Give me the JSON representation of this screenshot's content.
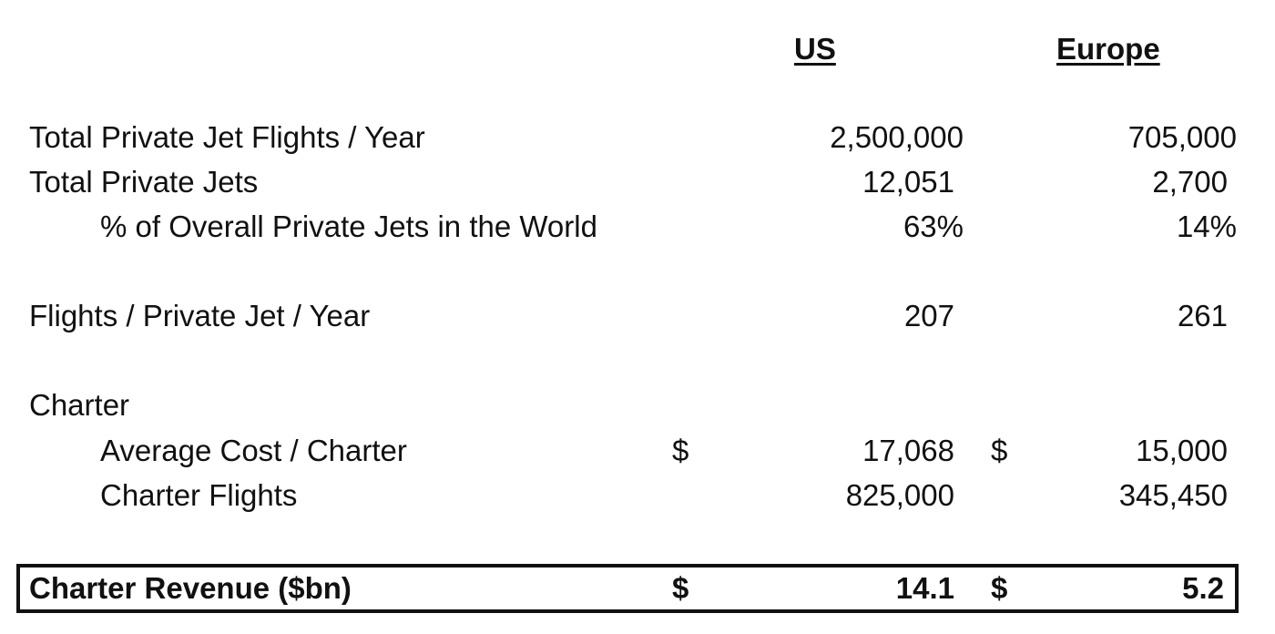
{
  "columns": {
    "us": "US",
    "europe": "Europe"
  },
  "rows": {
    "total_flights": {
      "label": "Total Private Jet Flights / Year",
      "us": "2,500,000",
      "europe": "705,000"
    },
    "total_jets": {
      "label": "Total Private Jets",
      "us": "12,051",
      "europe": "2,700"
    },
    "pct_world": {
      "label": "% of Overall Private Jets in the World",
      "us": "63%",
      "europe": "14%"
    },
    "flights_per_jet": {
      "label": "Flights / Private Jet / Year",
      "us": "207",
      "europe": "261"
    },
    "charter_section": {
      "label": "Charter"
    },
    "avg_cost": {
      "label": "Average Cost / Charter",
      "us_currency": "$",
      "us": "17,068",
      "europe_currency": "$",
      "europe": "15,000"
    },
    "charter_flights": {
      "label": "Charter Flights",
      "us": "825,000",
      "europe": "345,450"
    },
    "charter_revenue": {
      "label": "Charter Revenue ($bn)",
      "us_currency": "$",
      "us": "14.1",
      "europe_currency": "$",
      "europe": "5.2"
    }
  }
}
